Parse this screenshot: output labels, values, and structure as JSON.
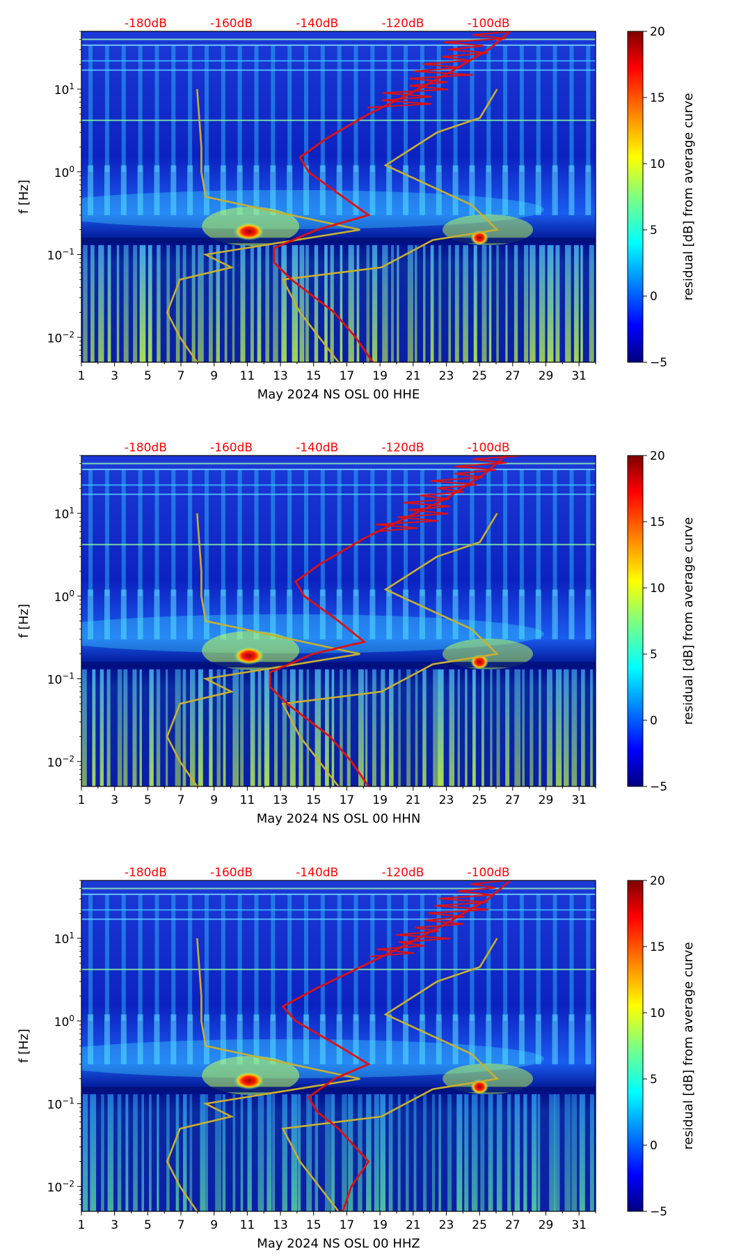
{
  "figure": {
    "db_ticks": [
      "-180dB",
      "-160dB",
      "-140dB",
      "-120dB",
      "-100dB"
    ],
    "ylabel": "f [Hz]",
    "colorbar_label": "residual [dB] from average curve",
    "colorbar_ticks": [
      "20",
      "15",
      "10",
      "5",
      "0",
      "−5"
    ],
    "colors": {
      "db_label": "#ff0000",
      "psd_curve": "#e01010",
      "noise_model": "#c8b030",
      "background": "#00108a"
    }
  },
  "chart_data": [
    {
      "type": "heatmap",
      "title": "",
      "xlabel": "May 2024 NS OSL 00 HHE",
      "ylabel": "f [Hz]",
      "x_ticks": [
        "1",
        "3",
        "5",
        "7",
        "9",
        "11",
        "13",
        "15",
        "17",
        "19",
        "21",
        "23",
        "25",
        "27",
        "29",
        "31"
      ],
      "y_ticks": [
        "10−2",
        "10−1",
        "100",
        "101"
      ],
      "xlim": [
        1,
        32
      ],
      "ylim_hz": [
        0.005,
        50
      ],
      "colorbar": {
        "label": "residual [dB] from average curve",
        "range": [
          -5,
          20
        ]
      },
      "top_axis_db": [
        "-180dB",
        "-160dB",
        "-140dB",
        "-120dB",
        "-100dB"
      ],
      "psd_curve_db_vs_hz": [
        [
          -127,
          0.005
        ],
        [
          -131,
          0.01
        ],
        [
          -136,
          0.02
        ],
        [
          -146,
          0.05
        ],
        [
          -150,
          0.08
        ],
        [
          -150,
          0.12
        ],
        [
          -140,
          0.2
        ],
        [
          -128,
          0.3
        ],
        [
          -134,
          0.5
        ],
        [
          -142,
          1.0
        ],
        [
          -144,
          1.5
        ],
        [
          -138,
          2.5
        ],
        [
          -128,
          5
        ],
        [
          -120,
          8
        ],
        [
          -110,
          15
        ],
        [
          -100,
          30
        ],
        [
          -95,
          50
        ]
      ]
    },
    {
      "type": "heatmap",
      "title": "",
      "xlabel": "May 2024 NS OSL 00 HHN",
      "ylabel": "f [Hz]",
      "x_ticks": [
        "1",
        "3",
        "5",
        "7",
        "9",
        "11",
        "13",
        "15",
        "17",
        "19",
        "21",
        "23",
        "25",
        "27",
        "29",
        "31"
      ],
      "y_ticks": [
        "10−2",
        "10−1",
        "100",
        "101"
      ],
      "xlim": [
        1,
        32
      ],
      "ylim_hz": [
        0.005,
        50
      ],
      "colorbar": {
        "label": "residual [dB] from average curve",
        "range": [
          -5,
          20
        ]
      },
      "top_axis_db": [
        "-180dB",
        "-160dB",
        "-140dB",
        "-120dB",
        "-100dB"
      ],
      "psd_curve_db_vs_hz": [
        [
          -128,
          0.005
        ],
        [
          -132,
          0.01
        ],
        [
          -137,
          0.02
        ],
        [
          -147,
          0.05
        ],
        [
          -151,
          0.08
        ],
        [
          -151,
          0.12
        ],
        [
          -141,
          0.2
        ],
        [
          -129,
          0.28
        ],
        [
          -135,
          0.5
        ],
        [
          -143,
          1.0
        ],
        [
          -145,
          1.5
        ],
        [
          -139,
          2.5
        ],
        [
          -129,
          5
        ],
        [
          -121,
          8
        ],
        [
          -110,
          15
        ],
        [
          -101,
          30
        ],
        [
          -96,
          50
        ]
      ]
    },
    {
      "type": "heatmap",
      "title": "",
      "xlabel": "May 2024 NS OSL 00 HHZ",
      "ylabel": "f [Hz]",
      "x_ticks": [
        "1",
        "3",
        "5",
        "7",
        "9",
        "11",
        "13",
        "15",
        "17",
        "19",
        "21",
        "23",
        "25",
        "27",
        "29",
        "31"
      ],
      "y_ticks": [
        "10−2",
        "10−1",
        "100",
        "101"
      ],
      "xlim": [
        1,
        32
      ],
      "ylim_hz": [
        0.005,
        50
      ],
      "colorbar": {
        "label": "residual [dB] from average curve",
        "range": [
          -5,
          20
        ]
      },
      "top_axis_db": [
        "-180dB",
        "-160dB",
        "-140dB",
        "-120dB",
        "-100dB"
      ],
      "psd_curve_db_vs_hz": [
        [
          -134,
          0.005
        ],
        [
          -132,
          0.01
        ],
        [
          -128,
          0.02
        ],
        [
          -135,
          0.05
        ],
        [
          -140,
          0.08
        ],
        [
          -142,
          0.12
        ],
        [
          -136,
          0.2
        ],
        [
          -128,
          0.3
        ],
        [
          -135,
          0.5
        ],
        [
          -145,
          1.0
        ],
        [
          -148,
          1.5
        ],
        [
          -140,
          2.5
        ],
        [
          -128,
          5
        ],
        [
          -120,
          8
        ],
        [
          -110,
          15
        ],
        [
          -100,
          30
        ],
        [
          -95,
          50
        ]
      ]
    }
  ],
  "noise_models": {
    "low_model_db_vs_hz": [
      [
        -168,
        0.005
      ],
      [
        -172,
        0.01
      ],
      [
        -175,
        0.02
      ],
      [
        -172,
        0.05
      ],
      [
        -160,
        0.07
      ],
      [
        -166,
        0.1
      ],
      [
        -130,
        0.2
      ],
      [
        -166,
        0.5
      ],
      [
        -167,
        1.0
      ],
      [
        -167,
        2.0
      ],
      [
        -168,
        10
      ]
    ],
    "high_model_db_vs_hz": [
      [
        -135,
        0.005
      ],
      [
        -144,
        0.02
      ],
      [
        -148,
        0.05
      ],
      [
        -125,
        0.07
      ],
      [
        -113,
        0.15
      ],
      [
        -98,
        0.2
      ],
      [
        -104,
        0.4
      ],
      [
        -124,
        1.2
      ],
      [
        -112,
        3
      ],
      [
        -102,
        4.5
      ],
      [
        -98,
        10
      ]
    ]
  }
}
